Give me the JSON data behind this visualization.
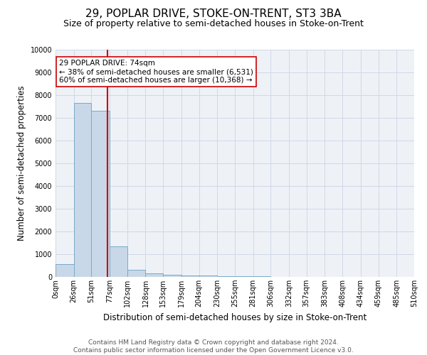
{
  "title": "29, POPLAR DRIVE, STOKE-ON-TRENT, ST3 3BA",
  "subtitle": "Size of property relative to semi-detached houses in Stoke-on-Trent",
  "xlabel": "Distribution of semi-detached houses by size in Stoke-on-Trent",
  "ylabel": "Number of semi-detached properties",
  "bar_edges": [
    0,
    26,
    51,
    77,
    102,
    128,
    153,
    179,
    204,
    230,
    255,
    281,
    306,
    332,
    357,
    383,
    408,
    434,
    459,
    485,
    510
  ],
  "bar_heights": [
    570,
    7650,
    7300,
    1350,
    310,
    160,
    95,
    70,
    55,
    30,
    25,
    20,
    15,
    10,
    8,
    6,
    5,
    4,
    3,
    2
  ],
  "bar_color": "#c8d8e8",
  "bar_edge_color": "#7aaac8",
  "property_size": 74,
  "property_label": "29 POPLAR DRIVE: 74sqm",
  "pct_smaller": 38,
  "n_smaller": 6531,
  "pct_larger": 60,
  "n_larger": 10368,
  "vline_color": "#cc0000",
  "annotation_box_edge": "#cc0000",
  "ylim": [
    0,
    10000
  ],
  "yticks": [
    0,
    1000,
    2000,
    3000,
    4000,
    5000,
    6000,
    7000,
    8000,
    9000,
    10000
  ],
  "xtick_labels": [
    "0sqm",
    "26sqm",
    "51sqm",
    "77sqm",
    "102sqm",
    "128sqm",
    "153sqm",
    "179sqm",
    "204sqm",
    "230sqm",
    "255sqm",
    "281sqm",
    "306sqm",
    "332sqm",
    "357sqm",
    "383sqm",
    "408sqm",
    "434sqm",
    "459sqm",
    "485sqm",
    "510sqm"
  ],
  "grid_color": "#d0d8e8",
  "bg_color": "#eef2f7",
  "footer": "Contains HM Land Registry data © Crown copyright and database right 2024.\nContains public sector information licensed under the Open Government Licence v3.0.",
  "title_fontsize": 11,
  "subtitle_fontsize": 9,
  "axis_label_fontsize": 8.5,
  "tick_fontsize": 7,
  "footer_fontsize": 6.5
}
